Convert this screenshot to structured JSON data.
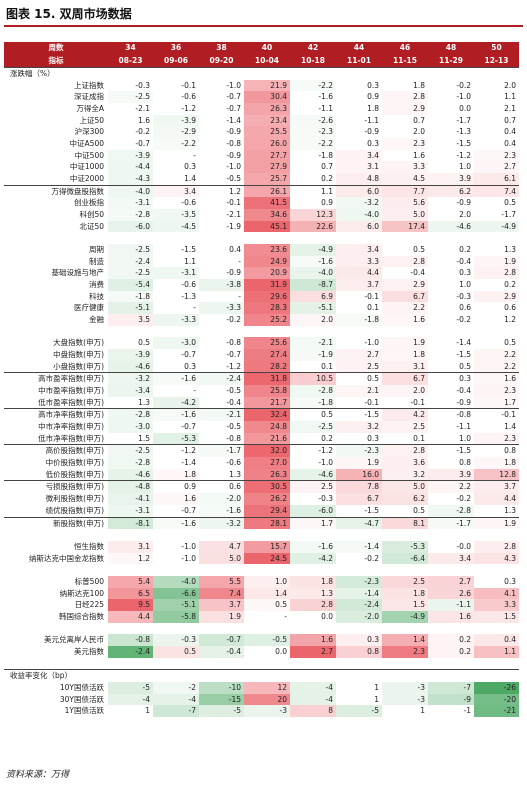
{
  "figure_title": "图表 15.  双周市场数据",
  "source_note": "资料来源：万得",
  "header": {
    "row1_label": "周数",
    "row2_label": "指标",
    "week_numbers": [
      "34",
      "36",
      "38",
      "40",
      "42",
      "44",
      "46",
      "48",
      "50"
    ],
    "dates": [
      "08-23",
      "09-06",
      "09-20",
      "10-04",
      "10-18",
      "11-01",
      "11-15",
      "11-29",
      "12-13"
    ]
  },
  "colors": {
    "header_bg": "#b01e23",
    "header_text": "#ffffff",
    "positive_max": "#e84a52",
    "negative_max": "#2e9a4a"
  },
  "rows": [
    {
      "label": "涨跌幅（%）",
      "section": true,
      "group_first": true,
      "values": [
        "",
        "",
        "",
        "",
        "",
        "",
        "",
        "",
        ""
      ]
    },
    {
      "label": "上证指数",
      "values": [
        "-0.3",
        "-0.1",
        "-1.0",
        "21.9",
        "-2.2",
        "0.3",
        "1.8",
        "-0.2",
        "2.0"
      ]
    },
    {
      "label": "深证成指",
      "values": [
        "-2.5",
        "-0.6",
        "-0.7",
        "30.4",
        "-1.6",
        "0.9",
        "2.8",
        "-1.0",
        "1.1"
      ]
    },
    {
      "label": "万得全A",
      "values": [
        "-2.1",
        "-1.2",
        "-0.7",
        "26.3",
        "-1.1",
        "1.8",
        "2.9",
        "0.0",
        "2.1"
      ]
    },
    {
      "label": "上证50",
      "values": [
        "1.6",
        "-3.9",
        "-1.4",
        "23.4",
        "-2.6",
        "-1.1",
        "0.7",
        "-1.7",
        "0.7"
      ]
    },
    {
      "label": "沪深300",
      "values": [
        "-0.2",
        "-2.9",
        "-0.9",
        "25.5",
        "-2.3",
        "-0.9",
        "2.0",
        "-1.3",
        "0.4"
      ]
    },
    {
      "label": "中证A500",
      "values": [
        "-0.7",
        "-2.2",
        "-0.8",
        "26.0",
        "-2.2",
        "0.3",
        "2.3",
        "-1.5",
        "0.4"
      ]
    },
    {
      "label": "中证500",
      "values": [
        "-3.9",
        "-",
        "-0.9",
        "27.7",
        "-1.8",
        "3.4",
        "1.6",
        "-1.2",
        "2.3"
      ]
    },
    {
      "label": "中证1000",
      "values": [
        "-4.4",
        "0.3",
        "-1.0",
        "27.9",
        "0.7",
        "3.1",
        "3.3",
        "1.0",
        "2.7"
      ]
    },
    {
      "label": "中证2000",
      "values": [
        "-4.3",
        "1.4",
        "-0.5",
        "25.7",
        "0.2",
        "4.8",
        "4.5",
        "3.9",
        "6.1"
      ]
    },
    {
      "label": "万得微盘股指数",
      "group_first": true,
      "values": [
        "-4.0",
        "3.4",
        "1.2",
        "26.1",
        "1.1",
        "6.0",
        "7.7",
        "6.2",
        "7.4"
      ]
    },
    {
      "label": "创业板指",
      "values": [
        "-3.1",
        "-0.6",
        "-0.1",
        "41.5",
        "0.9",
        "-3.2",
        "5.6",
        "-0.9",
        "0.5"
      ]
    },
    {
      "label": "科创50",
      "values": [
        "-2.8",
        "-3.5",
        "-2.1",
        "34.6",
        "12.3",
        "-4.0",
        "5.0",
        "2.0",
        "-1.7"
      ]
    },
    {
      "label": "北证50",
      "values": [
        "-6.0",
        "-4.5",
        "-1.9",
        "45.1",
        "22.6",
        "6.0",
        "17.4",
        "-4.6",
        "-4.9"
      ]
    },
    {
      "label": "",
      "spacer": true,
      "values": [
        "",
        "",
        "",
        "",
        "",
        "",
        "",
        "",
        ""
      ]
    },
    {
      "label": "周期",
      "values": [
        "-2.5",
        "-1.5",
        "0.4",
        "23.6",
        "-4.9",
        "3.4",
        "0.5",
        "0.2",
        "1.3"
      ]
    },
    {
      "label": "制造",
      "values": [
        "-2.4",
        "1.1",
        "-",
        "24.9",
        "-1.6",
        "3.3",
        "2.8",
        "-0.4",
        "1.9"
      ]
    },
    {
      "label": "基础设施与地产",
      "values": [
        "-2.5",
        "-3.1",
        "-0.9",
        "20.9",
        "-4.0",
        "4.4",
        "-0.4",
        "0.3",
        "2.8"
      ]
    },
    {
      "label": "消费",
      "values": [
        "-5.4",
        "-0.6",
        "-3.8",
        "31.9",
        "-8.7",
        "3.7",
        "2.9",
        "1.0",
        "0.2"
      ]
    },
    {
      "label": "科技",
      "values": [
        "-1.8",
        "-1.3",
        "-",
        "29.6",
        "6.9",
        "-0.1",
        "6.7",
        "-0.3",
        "2.9"
      ]
    },
    {
      "label": "医疗健康",
      "values": [
        "-5.1",
        "-",
        "-3.3",
        "28.3",
        "-5.1",
        "0.1",
        "2.2",
        "0.6",
        "0.6"
      ]
    },
    {
      "label": "金融",
      "values": [
        "3.5",
        "-3.3",
        "-0.2",
        "25.2",
        "2.0",
        "-1.8",
        "1.6",
        "-0.2",
        "1.2"
      ]
    },
    {
      "label": "",
      "spacer": true,
      "values": [
        "",
        "",
        "",
        "",
        "",
        "",
        "",
        "",
        ""
      ]
    },
    {
      "label": "大盘指数(申万)",
      "values": [
        "0.5",
        "-3.0",
        "-0.8",
        "25.6",
        "-2.1",
        "-1.0",
        "1.9",
        "-1.4",
        "0.5"
      ]
    },
    {
      "label": "中盘指数(申万)",
      "values": [
        "-3.9",
        "-0.7",
        "-0.7",
        "27.4",
        "-1.9",
        "2.7",
        "1.8",
        "-1.5",
        "2.2"
      ]
    },
    {
      "label": "小盘指数(申万)",
      "values": [
        "-4.6",
        "0.3",
        "-1.2",
        "28.2",
        "0.1",
        "2.5",
        "3.1",
        "0.5",
        "2.2"
      ]
    },
    {
      "label": "高市盈率指数(申万)",
      "group_first": true,
      "values": [
        "-3.2",
        "-1.6",
        "-2.4",
        "31.8",
        "10.5",
        "0.5",
        "6.7",
        "0.3",
        "1.6"
      ]
    },
    {
      "label": "中市盈率指数(申万)",
      "values": [
        "-3.4",
        "-",
        "-0.5",
        "25.8",
        "-2.8",
        "2.1",
        "2.0",
        "-0.4",
        "2.3"
      ]
    },
    {
      "label": "低市盈率指数(申万)",
      "values": [
        "1.3",
        "-4.2",
        "-0.4",
        "21.7",
        "-1.8",
        "-0.1",
        "-0.1",
        "-0.9",
        "1.7"
      ]
    },
    {
      "label": "高市净率指数(申万)",
      "group_first": true,
      "values": [
        "-2.8",
        "-1.6",
        "-2.1",
        "32.4",
        "0.5",
        "-1.5",
        "4.2",
        "-0.8",
        "-0.1"
      ]
    },
    {
      "label": "中市净率指数(申万)",
      "values": [
        "-3.0",
        "-0.7",
        "-0.5",
        "24.8",
        "-2.5",
        "3.2",
        "2.5",
        "-1.1",
        "1.4"
      ]
    },
    {
      "label": "低市净率指数(申万)",
      "values": [
        "1.5",
        "-5.3",
        "-0.8",
        "21.6",
        "0.2",
        "0.3",
        "0.1",
        "1.0",
        "2.3"
      ]
    },
    {
      "label": "高价股指数(申万)",
      "group_first": true,
      "values": [
        "-2.5",
        "-1.2",
        "-1.7",
        "32.0",
        "-1.2",
        "-2.3",
        "2.8",
        "-1.5",
        "0.8"
      ]
    },
    {
      "label": "中价股指数(申万)",
      "values": [
        "-2.8",
        "-1.4",
        "-0.6",
        "27.0",
        "-1.0",
        "1.9",
        "3.6",
        "0.8",
        "1.8"
      ]
    },
    {
      "label": "低价股指数(申万)",
      "values": [
        "-4.6",
        "1.8",
        "1.3",
        "26.3",
        "-4.6",
        "16.0",
        "3.2",
        "3.9",
        "12.8"
      ]
    },
    {
      "label": "亏损股指数(申万)",
      "group_first": true,
      "values": [
        "-4.8",
        "0.9",
        "0.6",
        "30.5",
        "2.5",
        "7.8",
        "5.0",
        "2.2",
        "3.7"
      ]
    },
    {
      "label": "微利股指数(申万)",
      "values": [
        "-4.1",
        "1.6",
        "-2.0",
        "26.2",
        "-0.3",
        "6.7",
        "6.2",
        "-0.2",
        "4.4"
      ]
    },
    {
      "label": "绩优股指数(申万)",
      "values": [
        "-3.1",
        "-0.7",
        "-1.6",
        "29.4",
        "-6.0",
        "-1.5",
        "0.5",
        "-2.8",
        "1.3"
      ]
    },
    {
      "label": "新股指数(申万)",
      "group_first": true,
      "values": [
        "-8.1",
        "-1.6",
        "-3.2",
        "28.1",
        "1.7",
        "-4.7",
        "8.1",
        "-1.7",
        "1.9"
      ]
    },
    {
      "label": "",
      "spacer": true,
      "values": [
        "",
        "",
        "",
        "",
        "",
        "",
        "",
        "",
        ""
      ]
    },
    {
      "label": "恒生指数",
      "values": [
        "3.1",
        "-1.0",
        "4.7",
        "15.7",
        "-1.6",
        "-1.4",
        "-5.3",
        "-0.0",
        "2.8"
      ]
    },
    {
      "label": "纳斯达克中国金龙指数",
      "values": [
        "1.2",
        "-1.0",
        "5.0",
        "24.5",
        "-4.2",
        "-0.2",
        "-6.4",
        "3.4",
        "4.3"
      ]
    },
    {
      "label": "",
      "spacer": true,
      "values": [
        "",
        "",
        "",
        "",
        "",
        "",
        "",
        "",
        ""
      ]
    },
    {
      "label": "标普500",
      "values": [
        "5.4",
        "-4.0",
        "5.5",
        "1.0",
        "1.8",
        "-2.3",
        "2.5",
        "2.7",
        "0.3"
      ]
    },
    {
      "label": "纳斯达克100",
      "values": [
        "6.5",
        "-6.6",
        "7.4",
        "1.4",
        "1.3",
        "-1.4",
        "1.8",
        "2.6",
        "4.1"
      ]
    },
    {
      "label": "日经225",
      "values": [
        "9.5",
        "-5.1",
        "3.7",
        "0.5",
        "2.8",
        "-2.4",
        "1.5",
        "-1.1",
        "3.3"
      ]
    },
    {
      "label": "韩国综合指数",
      "values": [
        "4.4",
        "-5.8",
        "1.9",
        "-",
        "0.0",
        "-2.0",
        "-4.9",
        "1.6",
        "1.5"
      ]
    },
    {
      "label": "",
      "spacer": true,
      "values": [
        "",
        "",
        "",
        "",
        "",
        "",
        "",
        "",
        ""
      ]
    },
    {
      "label": "美元兑离岸人民币",
      "values": [
        "-0.8",
        "-0.3",
        "-0.7",
        "-0.5",
        "1.6",
        "0.3",
        "1.4",
        "0.2",
        "0.4"
      ]
    },
    {
      "label": "美元指数",
      "values": [
        "-2.4",
        "0.5",
        "-0.4",
        "0.0",
        "2.7",
        "0.8",
        "2.3",
        "0.2",
        "1.1"
      ]
    },
    {
      "label": "",
      "spacer": true,
      "values": [
        "",
        "",
        "",
        "",
        "",
        "",
        "",
        "",
        ""
      ]
    },
    {
      "label": "收益率变化（bp）",
      "section": true,
      "group_first": true,
      "values": [
        "",
        "",
        "",
        "",
        "",
        "",
        "",
        "",
        ""
      ]
    },
    {
      "label": "10Y国债活跃",
      "values": [
        "-5",
        "-2",
        "-10",
        "12",
        "-4",
        "1",
        "-3",
        "-7",
        "-26"
      ]
    },
    {
      "label": "30Y国债活跃",
      "values": [
        "-4",
        "-4",
        "-15",
        "20",
        "-4",
        "1",
        "-3",
        "-9",
        "-20"
      ]
    },
    {
      "label": "1Y国债活跃",
      "values": [
        "1",
        "-7",
        "-5",
        "-3",
        "8",
        "-5",
        "1",
        "-1",
        "-21"
      ]
    }
  ]
}
